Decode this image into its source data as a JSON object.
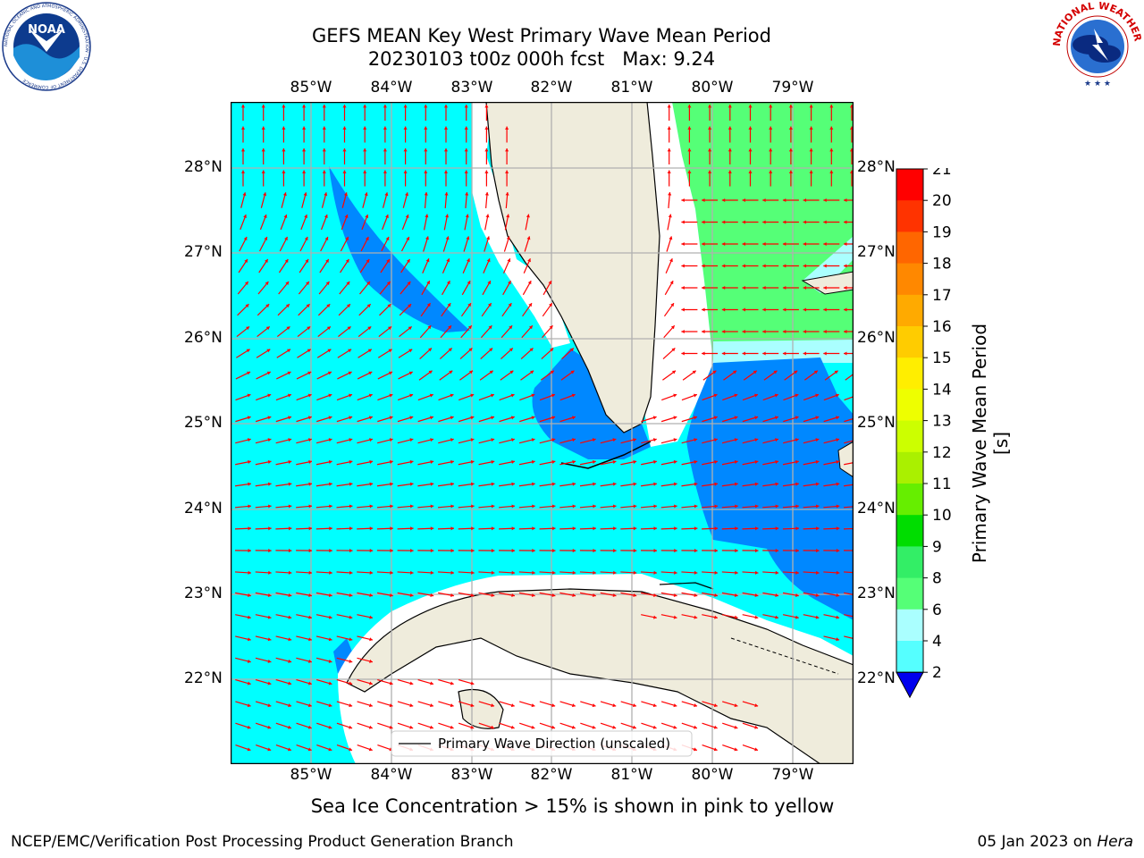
{
  "title": {
    "line1": "GEFS MEAN Key West Primary Wave Mean Period",
    "line2": "20230103 t00z 000h fcst   Max: 9.24"
  },
  "logos": {
    "left": {
      "icon": "noaa-logo",
      "text": "NOAA",
      "ring_text": "NATIONAL OCEANIC AND ATMOSPHERIC ADMINISTRATION · U.S. DEPARTMENT OF COMMERCE"
    },
    "right": {
      "icon": "nws-logo",
      "ring_text": "NATIONAL WEATHER SERVICE"
    }
  },
  "map": {
    "lon_labels": [
      "85°W",
      "84°W",
      "83°W",
      "82°W",
      "81°W",
      "80°W",
      "79°W"
    ],
    "lat_labels": [
      "28°N",
      "27°N",
      "26°N",
      "25°N",
      "24°N",
      "23°N",
      "22°N"
    ],
    "legend": "Primary Wave Direction (unscaled)",
    "arrow_color": "#ff0000",
    "land_color": "#efecdc",
    "grid_color": "#b0b0b0"
  },
  "colorbar": {
    "label": "Primary Wave Mean Period [s]",
    "ticks": [
      "21",
      "20",
      "19",
      "18",
      "17",
      "16",
      "15",
      "14",
      "13",
      "12",
      "11",
      "10",
      "9",
      "8",
      "6",
      "4",
      "2"
    ],
    "colors": [
      "#ff0000",
      "#ff3300",
      "#ff6600",
      "#ff8800",
      "#ffaa00",
      "#ffcc00",
      "#ffee00",
      "#eeff00",
      "#ccff00",
      "#aaf000",
      "#66ee00",
      "#00dd00",
      "#33ee66",
      "#55ff77",
      "#aaffff",
      "#55ffff",
      "#00ffff",
      "#0088ff",
      "#0000ee"
    ]
  },
  "caption": "Sea Ice Concentration > 15% is shown in pink to yellow",
  "footer": {
    "left": "NCEP/EMC/Verification Post Processing Product Generation Branch",
    "right_date": "05 Jan 2023 on ",
    "right_host": "Hera"
  }
}
